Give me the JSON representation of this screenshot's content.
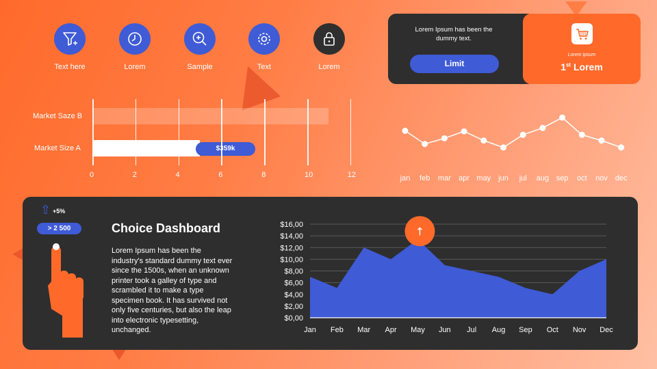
{
  "icons": [
    {
      "name": "filter-icon",
      "label": "Text here"
    },
    {
      "name": "clock-icon",
      "label": "Lorem"
    },
    {
      "name": "zoom-in-icon",
      "label": "Sample"
    },
    {
      "name": "gear-icon",
      "label": "Text"
    },
    {
      "name": "lock-icon",
      "label": "Lorem"
    }
  ],
  "promo": {
    "text": "Lorem Ipsum has been the dummy text.",
    "button_label": "Limit",
    "small_label": "Lorem ipsum",
    "rank_num": "1",
    "rank_sup": "st",
    "rank_text": "Lorem",
    "icon": "shopping-cart-icon"
  },
  "colors": {
    "accent_blue": "#3f5bd6",
    "brand_orange": "#ff6a2b",
    "panel_dark": "#2e2e2e"
  },
  "market_chart": {
    "type": "bar",
    "categories": [
      "Market Saze B",
      "Market Size A"
    ],
    "values": [
      11,
      5
    ],
    "badge": "$359k",
    "x_ticks": [
      "0",
      "2",
      "4",
      "6",
      "8",
      "10",
      "12"
    ],
    "xlim": [
      0,
      12
    ]
  },
  "monthly_line": {
    "type": "line",
    "categories": [
      "jan",
      "feb",
      "mar",
      "apr",
      "may",
      "jun",
      "jul",
      "aug",
      "sep",
      "oct",
      "nov",
      "dec"
    ],
    "values": [
      6.5,
      4.2,
      5.2,
      6.4,
      4.8,
      3.6,
      5.8,
      7.0,
      8.8,
      5.8,
      4.8,
      3.6
    ]
  },
  "dashboard": {
    "trend_arrow": "⇧",
    "trend_text": "+5%",
    "threshold": "> 2 500",
    "title": "Choice Dashboard",
    "body": "Lorem Ipsum has been the industry's standard dummy text ever since the 1500s, when an unknown printer took a galley of type and scrambled it to make a type specimen book. It has survived not only five centuries, but also the leap into electronic typesetting, unchanged.",
    "peak_icon": "↑"
  },
  "chart_data": [
    {
      "type": "bar",
      "categories": [
        "Market Saze B",
        "Market Size A"
      ],
      "values": [
        11,
        5
      ],
      "xlim": [
        0,
        12
      ],
      "annotations": [
        "$359k"
      ]
    },
    {
      "type": "line",
      "categories": [
        "jan",
        "feb",
        "mar",
        "apr",
        "may",
        "jun",
        "jul",
        "aug",
        "sep",
        "oct",
        "nov",
        "dec"
      ],
      "values": [
        6.5,
        4.2,
        5.2,
        6.4,
        4.8,
        3.6,
        5.8,
        7.0,
        8.8,
        5.8,
        4.8,
        3.6
      ]
    },
    {
      "type": "area",
      "categories": [
        "Jan",
        "Feb",
        "Mar",
        "Apr",
        "May",
        "Jun",
        "Jul",
        "Aug",
        "Sep",
        "Oct",
        "Nov",
        "Dec"
      ],
      "values": [
        7.0,
        5.1,
        12.0,
        10.0,
        13.4,
        9.0,
        8.0,
        7.0,
        5.1,
        4.0,
        8.0,
        10.0
      ],
      "y_ticks": [
        "$16,00",
        "$14,00",
        "$12,00",
        "$10,00",
        "$8,00",
        "$6,00",
        "$4,00",
        "$2,00",
        "$0,00"
      ],
      "ylim": [
        0,
        16
      ],
      "grid": true
    }
  ]
}
